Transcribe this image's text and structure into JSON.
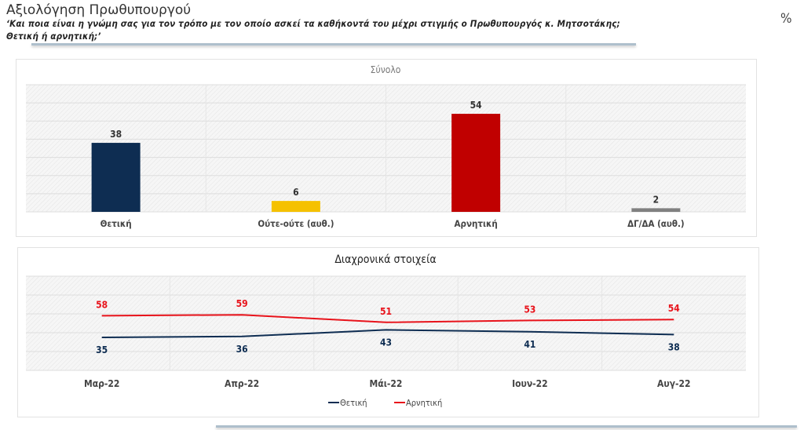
{
  "header": {
    "title": "Αξιολόγηση Πρωθυπουργού",
    "question_line1": "‘Και ποια είναι η γνώμη σας για τον τρόπο με τον οποίο ασκεί τα καθήκοντά του μέχρι στιγμής ο Πρωθυπουργός κ. Μητσοτάκης;",
    "question_line2": "Θετική ή αρνητική;’",
    "unit": "%"
  },
  "chart_data": [
    {
      "type": "bar",
      "title": "Σύνολο",
      "categories": [
        "Θετική",
        "Ούτε-ούτε (αυθ.)",
        "Αρνητική",
        "ΔΓ/ΔΑ (αυθ.)"
      ],
      "values": [
        38,
        6,
        54,
        2
      ],
      "colors": [
        "#0e2d52",
        "#f5c100",
        "#c00000",
        "#808080"
      ],
      "ylim": [
        0,
        70
      ],
      "grid": true
    },
    {
      "type": "line",
      "title": "Διαχρονικά στοιχεία",
      "categories": [
        "Μαρ-22",
        "Απρ-22",
        "Μάι-22",
        "Ιουν-22",
        "Αυγ-22"
      ],
      "series": [
        {
          "name": "Θετική",
          "values": [
            35,
            36,
            43,
            41,
            38
          ],
          "color": "#0e2d52"
        },
        {
          "name": "Αρνητική",
          "values": [
            58,
            59,
            51,
            53,
            54
          ],
          "color": "#e8131b"
        }
      ],
      "ylim": [
        0,
        100
      ],
      "grid": true,
      "legend": "bottom"
    }
  ]
}
